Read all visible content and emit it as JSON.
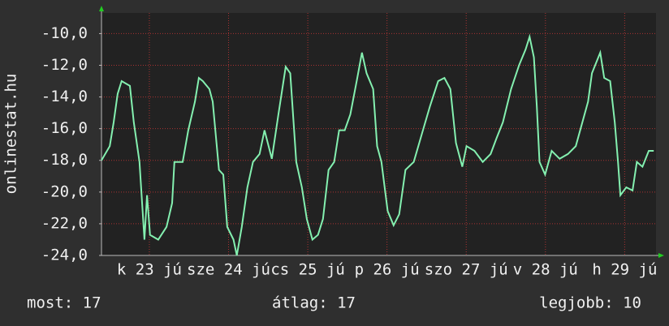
{
  "chart_data": {
    "type": "line",
    "y_label": "onlinestat.hu",
    "xlim": [
      0,
      168
    ],
    "xticks": [
      {
        "value": 14.5,
        "label": "k 23 jú"
      },
      {
        "value": 38.5,
        "label": "sze 24 jú"
      },
      {
        "value": 62.5,
        "label": "cs 25 jú"
      },
      {
        "value": 86.5,
        "label": "p 26 jú"
      },
      {
        "value": 110.5,
        "label": "szo 27 jú"
      },
      {
        "value": 134.5,
        "label": "v 28 jú"
      },
      {
        "value": 158.5,
        "label": "h 29 jú"
      }
    ],
    "ylim": [
      -24,
      -8.7
    ],
    "yticks": [
      {
        "value": -24,
        "label": "-24,0"
      },
      {
        "value": -22,
        "label": "-22,0"
      },
      {
        "value": -20,
        "label": "-20,0"
      },
      {
        "value": -18,
        "label": "-18,0"
      },
      {
        "value": -16,
        "label": "-16,0"
      },
      {
        "value": -14,
        "label": "-14,0"
      },
      {
        "value": -12,
        "label": "-12,0"
      },
      {
        "value": -10,
        "label": "-10,0"
      }
    ],
    "grid": true,
    "series": [
      {
        "color": "#84f0b0",
        "x": [
          0,
          2.5,
          3.7,
          4.9,
          6.1,
          8.6,
          9.8,
          11.5,
          13.0,
          13.8,
          14.7,
          17.2,
          19.7,
          21.4,
          22.1,
          24.6,
          26.3,
          28.3,
          29.5,
          30.7,
          32.7,
          33.7,
          35.6,
          36.9,
          38.1,
          40.0,
          41.0,
          42.5,
          44.2,
          45.9,
          47.9,
          49.4,
          51.6,
          53.6,
          55.8,
          57.2,
          59.0,
          60.7,
          62.2,
          63.9,
          65.6,
          67.1,
          68.8,
          70.5,
          72.0,
          73.7,
          75.4,
          77.4,
          78.9,
          80.3,
          82.3,
          83.5,
          84.8,
          86.7,
          88.5,
          90.2,
          92.1,
          94.6,
          97.1,
          99.5,
          102.0,
          103.9,
          105.7,
          107.4,
          109.3,
          110.6,
          113.0,
          115.5,
          117.9,
          119.7,
          121.6,
          124.1,
          126.5,
          128.5,
          129.7,
          131.0,
          131.9,
          132.7,
          134.4,
          136.4,
          138.8,
          141.3,
          143.7,
          145.7,
          147.4,
          148.6,
          151.1,
          152.3,
          154.1,
          155.5,
          156.5,
          157.2,
          159.0,
          160.9,
          162.2,
          163.9,
          165.8,
          167.3
        ],
        "values": [
          -18.0,
          -17.1,
          -15.6,
          -13.8,
          -13.0,
          -13.3,
          -15.6,
          -18.1,
          -23.0,
          -20.2,
          -22.7,
          -23.0,
          -22.2,
          -20.7,
          -18.1,
          -18.1,
          -16.1,
          -14.3,
          -12.8,
          -13.0,
          -13.5,
          -14.3,
          -18.6,
          -18.9,
          -22.2,
          -23.0,
          -24.0,
          -22.2,
          -19.7,
          -18.1,
          -17.6,
          -16.1,
          -17.9,
          -15.1,
          -12.1,
          -12.5,
          -18.1,
          -19.7,
          -21.7,
          -23.0,
          -22.7,
          -21.7,
          -18.6,
          -18.1,
          -16.1,
          -16.1,
          -15.1,
          -12.9,
          -11.2,
          -12.5,
          -13.5,
          -17.1,
          -18.1,
          -21.2,
          -22.1,
          -21.4,
          -18.6,
          -18.1,
          -16.3,
          -14.6,
          -13.0,
          -12.8,
          -13.5,
          -16.9,
          -18.4,
          -17.1,
          -17.4,
          -18.1,
          -17.6,
          -16.6,
          -15.6,
          -13.5,
          -12.0,
          -11.0,
          -10.2,
          -11.5,
          -14.6,
          -18.1,
          -18.9,
          -17.4,
          -17.9,
          -17.6,
          -17.1,
          -15.6,
          -14.3,
          -12.5,
          -11.2,
          -12.8,
          -13.0,
          -15.6,
          -18.1,
          -20.2,
          -19.7,
          -19.9,
          -18.1,
          -18.4,
          -17.4,
          -17.4
        ]
      }
    ],
    "footer": [
      "most: 17",
      "átlag: 17",
      "legjobb: 10"
    ]
  }
}
